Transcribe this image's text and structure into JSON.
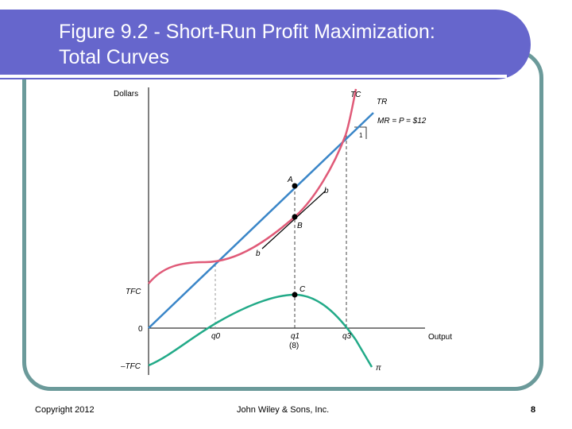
{
  "slide": {
    "title_line1": "Figure 9.2 - Short-Run Profit Maximization:",
    "title_line2": "Total Curves",
    "copyright": "Copyright 2012",
    "publisher": "John Wiley & Sons, Inc.",
    "page_number": "8"
  },
  "diagram": {
    "y_axis_label": "Dollars",
    "x_axis_label": "Output",
    "tfc_label": "TFC",
    "neg_tfc_label": "–TFC",
    "zero_label": "0",
    "tc_label": "TC",
    "tr_label": "TR",
    "mr_label": "MR = P = $12",
    "slope_one_label": "1",
    "point_a_label": "A",
    "point_b_label": "B",
    "point_c_label": "C",
    "tangent_top_label": "b",
    "tangent_bottom_label": "b",
    "q0_label": "q0",
    "q1_label": "q1",
    "q1_sub_label": "(8)",
    "q3_label": "q3",
    "pi_label": "π",
    "colors": {
      "tc": "#e05a78",
      "tr": "#3a86c8",
      "profit": "#22aa88"
    }
  }
}
